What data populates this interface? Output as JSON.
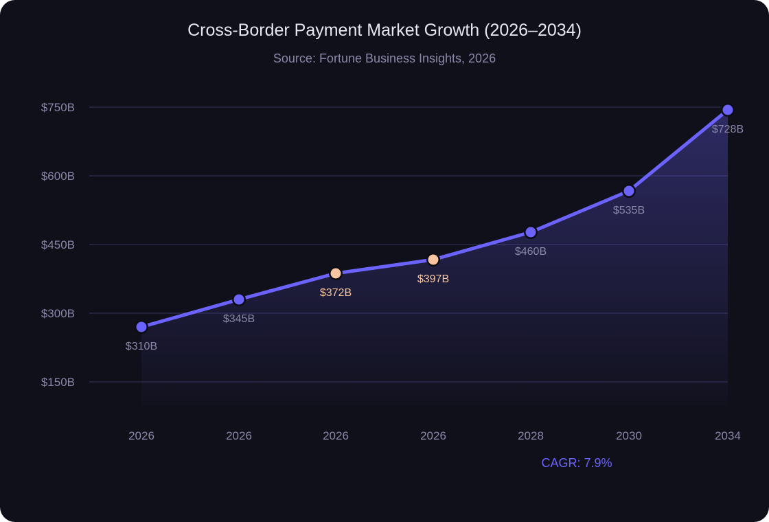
{
  "title": "Cross-Border Payment Market Growth (2026–2034)",
  "subtitle": "Source: Fortune Business Insights, 2026",
  "annotation": "CAGR: 7.9%",
  "colors": {
    "background": "#10101a",
    "line": "#6c63ff",
    "highlight_point": "#f7c59f",
    "grid": "#22223a",
    "muted_text": "#8a87a8"
  },
  "chart_data": {
    "type": "line",
    "title": "Cross-Border Payment Market Growth (2026–2034)",
    "subtitle": "Source: Fortune Business Insights, 2026",
    "xlabel": "",
    "ylabel": "",
    "categories": [
      "2026",
      "2026",
      "2026",
      "2026",
      "2028",
      "2030",
      "2034"
    ],
    "values": [
      310,
      345,
      372,
      397,
      460,
      535,
      728
    ],
    "point_labels": [
      "$310B",
      "$345B",
      "$372B",
      "$397B",
      "$460B",
      "$535B",
      "$728B"
    ],
    "highlighted_indices": [
      2,
      3
    ],
    "yticks": [
      "$150B",
      "$300B",
      "$450B",
      "$600B",
      "$750B"
    ],
    "ytick_values": [
      150,
      300,
      450,
      600,
      750
    ],
    "ylim": [
      100,
      750
    ],
    "grid": true,
    "area_fill": true,
    "annotations": [
      "CAGR: 7.9%"
    ],
    "legend": null
  }
}
